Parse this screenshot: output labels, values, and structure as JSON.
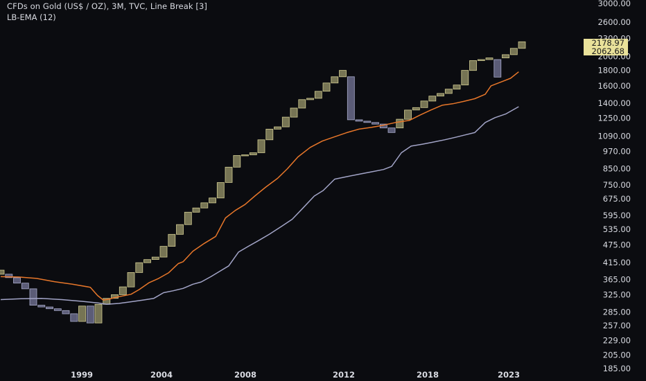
{
  "header": {
    "title": "CFDs on Gold (US$ / OZ), 3M, TVC, Line Break [3]",
    "indicator": "LB-EMA (12)"
  },
  "colors": {
    "background": "#0b0c10",
    "up_brick_fill": "#8a8760",
    "up_brick_stroke": "#d2cc92",
    "down_brick_fill": "#6a6b8a",
    "down_brick_stroke": "#aaaccc",
    "ema_line": "#e8772a",
    "lower_line": "#a3a5c8",
    "price_label_bg": "#e9e19a",
    "text": "#d9dbe2"
  },
  "chart_data": {
    "type": "line_break",
    "scale": "log",
    "ylim": [
      185,
      3000
    ],
    "y_ticks": [
      "3000.00",
      "2600.00",
      "2300.00",
      "2000.00",
      "1800.00",
      "1600.00",
      "1400.00",
      "1250.00",
      "1090.00",
      "970.00",
      "850.00",
      "750.00",
      "675.00",
      "595.00",
      "535.00",
      "475.00",
      "415.00",
      "365.00",
      "325.00",
      "285.00",
      "257.00",
      "229.00",
      "205.00",
      "185.00"
    ],
    "x_ticks": [
      "1999",
      "2004",
      "2008",
      "2012",
      "2018",
      "2023"
    ],
    "last_price_labels": [
      "2178.97",
      "2062.68"
    ],
    "bricks": [
      {
        "open": 380,
        "close": 392,
        "dir": "up"
      },
      {
        "open": 380,
        "close": 370,
        "dir": "down"
      },
      {
        "open": 370,
        "close": 355,
        "dir": "down"
      },
      {
        "open": 355,
        "close": 340,
        "dir": "down"
      },
      {
        "open": 340,
        "close": 300,
        "dir": "down"
      },
      {
        "open": 300,
        "close": 296,
        "dir": "down"
      },
      {
        "open": 296,
        "close": 292,
        "dir": "down"
      },
      {
        "open": 292,
        "close": 288,
        "dir": "down"
      },
      {
        "open": 288,
        "close": 281,
        "dir": "down"
      },
      {
        "open": 281,
        "close": 265,
        "dir": "down"
      },
      {
        "open": 265,
        "close": 298,
        "dir": "up"
      },
      {
        "open": 298,
        "close": 262,
        "dir": "down"
      },
      {
        "open": 262,
        "close": 302,
        "dir": "up"
      },
      {
        "open": 302,
        "close": 316,
        "dir": "up"
      },
      {
        "open": 316,
        "close": 325,
        "dir": "up"
      },
      {
        "open": 325,
        "close": 345,
        "dir": "up"
      },
      {
        "open": 345,
        "close": 385,
        "dir": "up"
      },
      {
        "open": 385,
        "close": 415,
        "dir": "up"
      },
      {
        "open": 415,
        "close": 425,
        "dir": "up"
      },
      {
        "open": 425,
        "close": 433,
        "dir": "up"
      },
      {
        "open": 433,
        "close": 470,
        "dir": "up"
      },
      {
        "open": 470,
        "close": 515,
        "dir": "up"
      },
      {
        "open": 515,
        "close": 555,
        "dir": "up"
      },
      {
        "open": 555,
        "close": 610,
        "dir": "up"
      },
      {
        "open": 610,
        "close": 630,
        "dir": "up"
      },
      {
        "open": 630,
        "close": 655,
        "dir": "up"
      },
      {
        "open": 655,
        "close": 680,
        "dir": "up"
      },
      {
        "open": 680,
        "close": 765,
        "dir": "up"
      },
      {
        "open": 765,
        "close": 860,
        "dir": "up"
      },
      {
        "open": 860,
        "close": 940,
        "dir": "up"
      },
      {
        "open": 940,
        "close": 945,
        "dir": "up"
      },
      {
        "open": 945,
        "close": 960,
        "dir": "up"
      },
      {
        "open": 960,
        "close": 1060,
        "dir": "up"
      },
      {
        "open": 1060,
        "close": 1150,
        "dir": "up"
      },
      {
        "open": 1150,
        "close": 1170,
        "dir": "up"
      },
      {
        "open": 1170,
        "close": 1260,
        "dir": "up"
      },
      {
        "open": 1260,
        "close": 1350,
        "dir": "up"
      },
      {
        "open": 1350,
        "close": 1440,
        "dir": "up"
      },
      {
        "open": 1440,
        "close": 1455,
        "dir": "up"
      },
      {
        "open": 1455,
        "close": 1535,
        "dir": "up"
      },
      {
        "open": 1535,
        "close": 1635,
        "dir": "up"
      },
      {
        "open": 1635,
        "close": 1715,
        "dir": "up"
      },
      {
        "open": 1715,
        "close": 1800,
        "dir": "up"
      },
      {
        "open": 1715,
        "close": 1235,
        "dir": "down"
      },
      {
        "open": 1235,
        "close": 1222,
        "dir": "down"
      },
      {
        "open": 1222,
        "close": 1210,
        "dir": "down"
      },
      {
        "open": 1210,
        "close": 1195,
        "dir": "down"
      },
      {
        "open": 1195,
        "close": 1160,
        "dir": "down"
      },
      {
        "open": 1160,
        "close": 1120,
        "dir": "down"
      },
      {
        "open": 1160,
        "close": 1240,
        "dir": "up"
      },
      {
        "open": 1240,
        "close": 1330,
        "dir": "up"
      },
      {
        "open": 1330,
        "close": 1355,
        "dir": "up"
      },
      {
        "open": 1355,
        "close": 1425,
        "dir": "up"
      },
      {
        "open": 1425,
        "close": 1480,
        "dir": "up"
      },
      {
        "open": 1480,
        "close": 1510,
        "dir": "up"
      },
      {
        "open": 1510,
        "close": 1560,
        "dir": "up"
      },
      {
        "open": 1560,
        "close": 1610,
        "dir": "up"
      },
      {
        "open": 1610,
        "close": 1800,
        "dir": "up"
      },
      {
        "open": 1800,
        "close": 1940,
        "dir": "up"
      },
      {
        "open": 1940,
        "close": 1955,
        "dir": "up"
      },
      {
        "open": 1955,
        "close": 1980,
        "dir": "up"
      },
      {
        "open": 1955,
        "close": 1710,
        "dir": "down"
      },
      {
        "open": 1980,
        "close": 2030,
        "dir": "up"
      },
      {
        "open": 2030,
        "close": 2130,
        "dir": "up"
      },
      {
        "open": 2130,
        "close": 2240,
        "dir": "up"
      }
    ],
    "series": [
      {
        "color": "#e8772a",
        "values": [
          [
            0,
            373
          ],
          [
            2.2,
            372
          ],
          [
            4.4,
            368
          ],
          [
            6.6,
            359
          ],
          [
            8.8,
            352
          ],
          [
            11,
            344
          ],
          [
            11.9,
            323
          ],
          [
            12.6,
            312
          ],
          [
            13.3,
            314
          ],
          [
            14,
            318
          ],
          [
            15,
            322
          ],
          [
            16,
            326
          ],
          [
            17,
            338
          ],
          [
            18.2,
            356
          ],
          [
            19.4,
            368
          ],
          [
            20.6,
            384
          ],
          [
            21.8,
            412
          ],
          [
            22.4,
            418
          ],
          [
            23.6,
            453
          ],
          [
            25,
            481
          ],
          [
            26.4,
            507
          ],
          [
            27.6,
            584
          ],
          [
            28.8,
            618
          ],
          [
            30,
            647
          ],
          [
            31.2,
            690
          ],
          [
            32.5,
            737
          ],
          [
            34,
            790
          ],
          [
            35.2,
            850
          ],
          [
            36.5,
            930
          ],
          [
            38,
            1000
          ],
          [
            39.5,
            1050
          ],
          [
            41,
            1085
          ],
          [
            42.5,
            1120
          ],
          [
            44,
            1150
          ],
          [
            45.5,
            1165
          ],
          [
            47,
            1185
          ],
          [
            48.5,
            1210
          ],
          [
            50.2,
            1230
          ],
          [
            51.5,
            1280
          ],
          [
            52.8,
            1330
          ],
          [
            54.2,
            1380
          ],
          [
            55.5,
            1395
          ],
          [
            56.8,
            1420
          ],
          [
            58.2,
            1450
          ],
          [
            59.5,
            1500
          ],
          [
            60.2,
            1600
          ],
          [
            61.5,
            1650
          ],
          [
            62.6,
            1695
          ],
          [
            63.6,
            1780
          ]
        ]
      },
      {
        "color": "#a3a5c8",
        "values": [
          [
            0,
            313
          ],
          [
            2.5,
            315
          ],
          [
            5,
            316
          ],
          [
            7.5,
            313
          ],
          [
            10,
            309
          ],
          [
            12,
            305
          ],
          [
            13,
            302
          ],
          [
            14.5,
            304
          ],
          [
            16,
            308
          ],
          [
            17.5,
            312
          ],
          [
            18.8,
            316
          ],
          [
            20,
            330
          ],
          [
            21.2,
            335
          ],
          [
            22.4,
            341
          ],
          [
            23.6,
            352
          ],
          [
            24.6,
            358
          ],
          [
            25.8,
            373
          ],
          [
            27,
            390
          ],
          [
            28,
            405
          ],
          [
            29.2,
            450
          ],
          [
            30.4,
            470
          ],
          [
            31.6,
            490
          ],
          [
            33,
            516
          ],
          [
            34.5,
            548
          ],
          [
            35.8,
            578
          ],
          [
            37,
            625
          ],
          [
            38.5,
            690
          ],
          [
            39.6,
            720
          ],
          [
            41,
            785
          ],
          [
            42.5,
            800
          ],
          [
            44,
            815
          ],
          [
            45.5,
            830
          ],
          [
            47,
            845
          ],
          [
            48,
            865
          ],
          [
            49.2,
            960
          ],
          [
            50.4,
            1010
          ],
          [
            51.8,
            1025
          ],
          [
            53,
            1040
          ],
          [
            54.5,
            1060
          ],
          [
            55.8,
            1080
          ],
          [
            57,
            1100
          ],
          [
            58.2,
            1120
          ],
          [
            59.5,
            1210
          ],
          [
            60.7,
            1255
          ],
          [
            62,
            1290
          ],
          [
            63.6,
            1365
          ]
        ]
      }
    ]
  }
}
